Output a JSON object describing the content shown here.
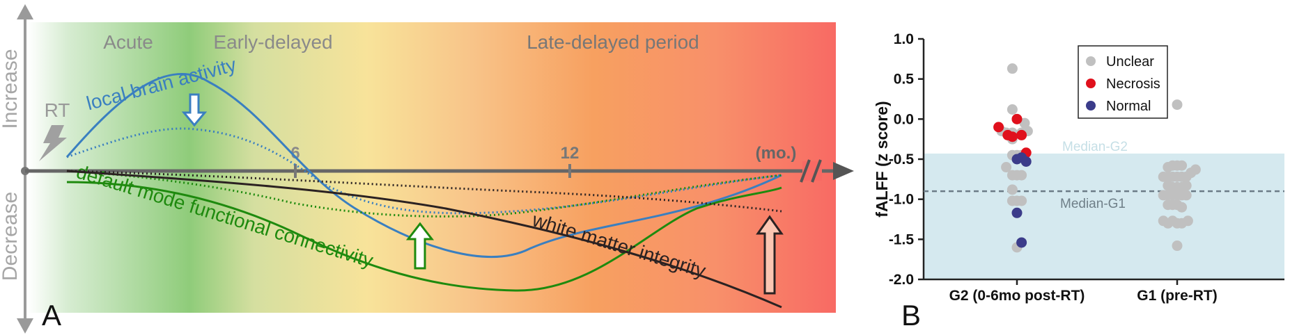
{
  "panel_a": {
    "panel_letter": "A",
    "axis_increase": "Increase",
    "axis_decrease": "Decrease",
    "rt_label": "RT",
    "periods": [
      "Acute",
      "Early-delayed",
      "Late-delayed period"
    ],
    "ticks": [
      "6",
      "12"
    ],
    "unit": "(mo.)",
    "curve_labels": {
      "local_brain_activity": "local brain activity",
      "default_mode": "default mode functional connectivity",
      "white_matter": "white matter integrity"
    },
    "colors": {
      "local_brain_activity": "#3a7fc0",
      "default_mode": "#1e8a0e",
      "white_matter": "#2b2222",
      "axis": "#666666",
      "acute_green": "#8fcc7a",
      "mid_yellow": "#f8e39a",
      "late_orange": "#f7a060",
      "late_red": "#f86a64"
    },
    "icons": [
      "lightning-icon",
      "down-arrow-icon",
      "up-arrow-icon",
      "axis-break-icon"
    ]
  },
  "panel_b": {
    "panel_letter": "B",
    "background_band_color": "#d5e9ef",
    "median_labels": [
      "Median-G2",
      "Median-G1"
    ]
  },
  "chart_data": {
    "type": "scatter",
    "ylabel": "fALFF (z score)",
    "ylim": [
      -2.0,
      1.0
    ],
    "yticks": [
      "1.0",
      "0.5",
      "0.0",
      "-0.5",
      "-1.0",
      "-1.5",
      "-2.0"
    ],
    "categories": [
      "G2 (0-6mo post-RT)",
      "G1 (pre-RT)"
    ],
    "legend": [
      {
        "name": "Unclear",
        "color": "#c0c0c0"
      },
      {
        "name": "Necrosis",
        "color": "#e0101c"
      },
      {
        "name": "Normal",
        "color": "#3b3c8a"
      }
    ],
    "medians": {
      "Median-G2": -0.43,
      "Median-G1": -0.9
    },
    "series": [
      {
        "name": "Unclear",
        "group": "G2 (0-6mo post-RT)",
        "points": [
          [
            -0.35,
            -0.17
          ],
          [
            -0.15,
            0.63
          ],
          [
            -0.15,
            0.12
          ],
          [
            0,
            0.0
          ],
          [
            0.25,
            -0.05
          ],
          [
            -0.5,
            -0.15
          ],
          [
            -0.15,
            -0.17
          ],
          [
            0.15,
            -0.17
          ],
          [
            0.35,
            -0.15
          ],
          [
            -0.15,
            -0.25
          ],
          [
            -0.15,
            -0.45
          ],
          [
            0.0,
            -0.45
          ],
          [
            0.15,
            -0.45
          ],
          [
            -0.35,
            -0.6
          ],
          [
            -0.15,
            -0.7
          ],
          [
            0,
            -0.7
          ],
          [
            0.15,
            -0.7
          ],
          [
            -0.15,
            -0.88
          ],
          [
            -0.15,
            -1.02
          ],
          [
            0,
            -1.02
          ],
          [
            0.15,
            -1.02
          ],
          [
            0,
            -1.6
          ],
          [
            0.0,
            -1.17
          ]
        ]
      },
      {
        "name": "Necrosis",
        "group": "G2 (0-6mo post-RT)",
        "points": [
          [
            -0.6,
            -0.1
          ],
          [
            -0.3,
            -0.2
          ],
          [
            0,
            0.0
          ],
          [
            -0.15,
            -0.22
          ],
          [
            0.15,
            -0.2
          ],
          [
            0.3,
            -0.42
          ]
        ]
      },
      {
        "name": "Normal",
        "group": "G2 (0-6mo post-RT)",
        "points": [
          [
            0,
            -0.5
          ],
          [
            0.15,
            -0.48
          ],
          [
            0.3,
            -0.53
          ],
          [
            0,
            -1.17
          ],
          [
            0.15,
            -1.54
          ]
        ]
      },
      {
        "name": "Unclear",
        "group": "G1 (pre-RT)",
        "points": [
          [
            0,
            0.18
          ],
          [
            -0.3,
            -0.6
          ],
          [
            -0.15,
            -0.58
          ],
          [
            0.0,
            -0.58
          ],
          [
            0.15,
            -0.58
          ],
          [
            0.6,
            -0.63
          ],
          [
            -0.45,
            -0.72
          ],
          [
            -0.3,
            -0.72
          ],
          [
            -0.15,
            -0.72
          ],
          [
            0,
            -0.72
          ],
          [
            0.15,
            -0.72
          ],
          [
            0.3,
            -0.72
          ],
          [
            0.45,
            -0.67
          ],
          [
            -0.3,
            -0.83
          ],
          [
            -0.15,
            -0.85
          ],
          [
            0,
            -0.85
          ],
          [
            0.15,
            -0.85
          ],
          [
            0.3,
            -0.83
          ],
          [
            -0.45,
            -0.95
          ],
          [
            -0.3,
            -0.95
          ],
          [
            -0.15,
            -0.95
          ],
          [
            0,
            -0.95
          ],
          [
            0.15,
            -0.95
          ],
          [
            0.3,
            -0.95
          ],
          [
            -0.3,
            -1.07
          ],
          [
            -0.15,
            -1.07
          ],
          [
            0,
            -1.07
          ],
          [
            0.15,
            -1.1
          ],
          [
            -0.45,
            -1.27
          ],
          [
            -0.3,
            -1.3
          ],
          [
            -0.15,
            -1.27
          ],
          [
            0,
            -1.3
          ],
          [
            0.15,
            -1.3
          ],
          [
            0.35,
            -1.27
          ],
          [
            0,
            -1.58
          ]
        ]
      }
    ]
  }
}
